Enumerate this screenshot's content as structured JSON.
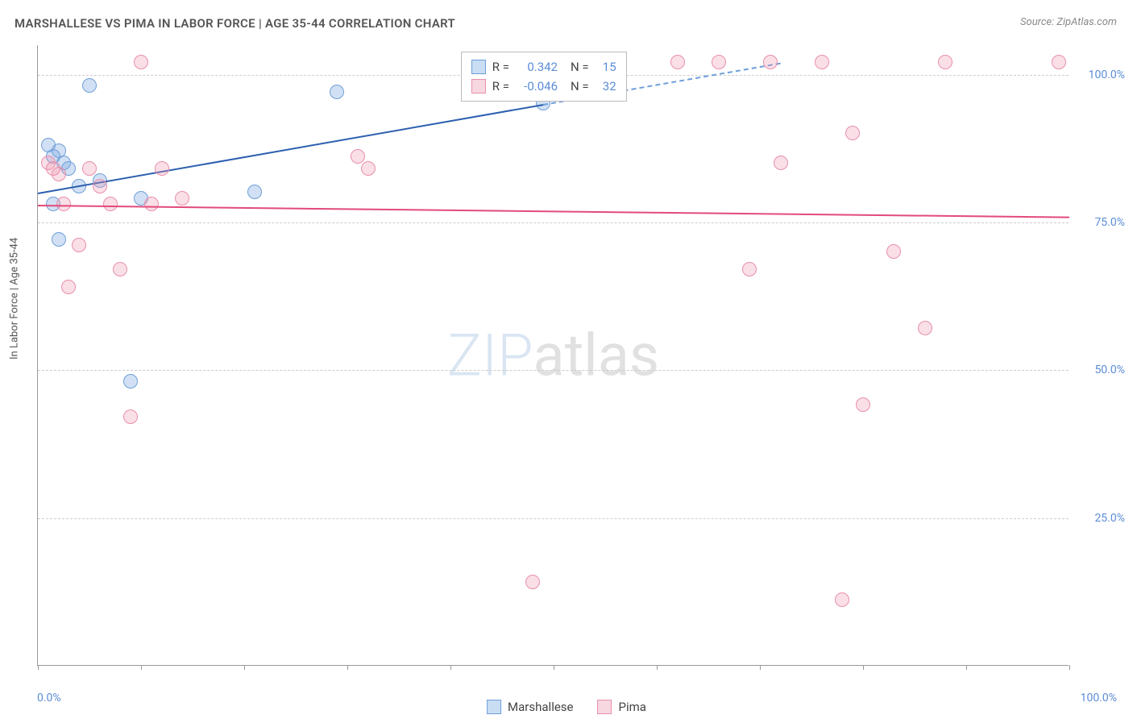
{
  "title": "MARSHALLESE VS PIMA IN LABOR FORCE | AGE 35-44 CORRELATION CHART",
  "source": "Source: ZipAtlas.com",
  "y_axis_label": "In Labor Force | Age 35-44",
  "watermark": {
    "part1": "ZIP",
    "part2": "atlas"
  },
  "chart": {
    "type": "scatter",
    "xlim": [
      0,
      100
    ],
    "ylim": [
      0,
      105
    ],
    "x_ticks": [
      0,
      10,
      20,
      30,
      40,
      50,
      60,
      70,
      80,
      90,
      100
    ],
    "y_gridlines": [
      25,
      50,
      75,
      100
    ],
    "y_tick_labels": [
      "25.0%",
      "50.0%",
      "75.0%",
      "100.0%"
    ],
    "x_min_label": "0.0%",
    "x_max_label": "100.0%",
    "background_color": "#ffffff",
    "grid_color": "#cccccc",
    "axis_color": "#999999",
    "tick_label_color": "#5b8dd6",
    "marker_radius": 9,
    "marker_stroke_width": 1,
    "series": [
      {
        "name": "Marshallese",
        "fill": "rgba(123,167,224,0.35)",
        "stroke": "#6f9fd8",
        "swatch_fill": "#c9ddf3",
        "swatch_border": "#6f9fd8",
        "points": [
          [
            1,
            88
          ],
          [
            1.5,
            86
          ],
          [
            2,
            87
          ],
          [
            2.5,
            85
          ],
          [
            3,
            84
          ],
          [
            1.5,
            78
          ],
          [
            2,
            72
          ],
          [
            4,
            81
          ],
          [
            5,
            98
          ],
          [
            6,
            82
          ],
          [
            9,
            48
          ],
          [
            10,
            79
          ],
          [
            21,
            80
          ],
          [
            29,
            97
          ],
          [
            49,
            95
          ]
        ],
        "trend": {
          "x1": 0,
          "y1": 80,
          "x2": 49,
          "y2": 95,
          "color": "#2d5fb0",
          "width": 2
        },
        "trend_ext": {
          "x1": 49,
          "y1": 95,
          "x2": 72,
          "y2": 102,
          "color": "#6f9fd8",
          "width": 2
        }
      },
      {
        "name": "Pima",
        "fill": "rgba(240,150,175,0.3)",
        "stroke": "#e98fab",
        "swatch_fill": "#f7d7e0",
        "swatch_border": "#e98fab",
        "points": [
          [
            1,
            85
          ],
          [
            1.5,
            84
          ],
          [
            2,
            83
          ],
          [
            2.5,
            78
          ],
          [
            3,
            64
          ],
          [
            4,
            71
          ],
          [
            5,
            84
          ],
          [
            6,
            81
          ],
          [
            7,
            78
          ],
          [
            8,
            67
          ],
          [
            9,
            42
          ],
          [
            10,
            102
          ],
          [
            11,
            78
          ],
          [
            12,
            84
          ],
          [
            14,
            79
          ],
          [
            31,
            86
          ],
          [
            32,
            84
          ],
          [
            48,
            14
          ],
          [
            48.5,
            102
          ],
          [
            62,
            102
          ],
          [
            66,
            102
          ],
          [
            69,
            67
          ],
          [
            71,
            102
          ],
          [
            72,
            85
          ],
          [
            76,
            102
          ],
          [
            78,
            11
          ],
          [
            79,
            90
          ],
          [
            80,
            44
          ],
          [
            83,
            70
          ],
          [
            86,
            57
          ],
          [
            88,
            102
          ],
          [
            99,
            102
          ]
        ],
        "trend": {
          "x1": 0,
          "y1": 78,
          "x2": 100,
          "y2": 76,
          "color": "#e24b7a",
          "width": 2
        }
      }
    ],
    "stats_box": {
      "left_pct": 41,
      "top_pct": 1,
      "rows": [
        {
          "swatch_fill": "#c9ddf3",
          "swatch_border": "#6f9fd8",
          "r_label": "R =",
          "r_val": "0.342",
          "n_label": "N =",
          "n_val": "15"
        },
        {
          "swatch_fill": "#f7d7e0",
          "swatch_border": "#e98fab",
          "r_label": "R =",
          "r_val": "-0.046",
          "n_label": "N =",
          "n_val": "32"
        }
      ]
    }
  },
  "legend": [
    {
      "label": "Marshallese",
      "fill": "#c9ddf3",
      "border": "#6f9fd8"
    },
    {
      "label": "Pima",
      "fill": "#f7d7e0",
      "border": "#e98fab"
    }
  ]
}
